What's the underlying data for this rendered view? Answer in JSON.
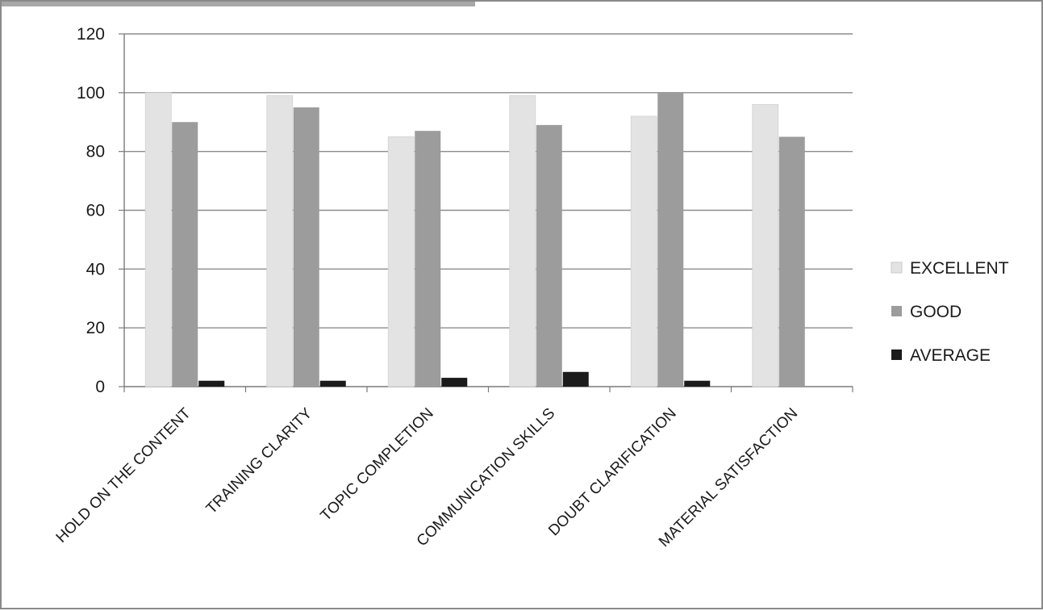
{
  "chart_data": {
    "type": "bar",
    "categories": [
      "HOLD ON THE CONTENT",
      "TRAINING CLARITY",
      "TOPIC COMPLETION",
      "COMMUNICATION SKILLS",
      "DOUBT CLARIFICATION",
      "MATERIAL SATISFACTION"
    ],
    "series": [
      {
        "name": "EXCELLENT",
        "values": [
          100,
          99,
          85,
          99,
          92,
          96
        ],
        "color": "#e3e3e3"
      },
      {
        "name": "GOOD",
        "values": [
          90,
          95,
          87,
          89,
          100,
          85
        ],
        "color": "#9c9c9c"
      },
      {
        "name": "AVERAGE",
        "values": [
          2,
          2,
          3,
          5,
          2,
          0
        ],
        "color": "#1b1b1b"
      }
    ],
    "title": "",
    "xlabel": "",
    "ylabel": "",
    "ylim": [
      0,
      120
    ],
    "yticks": [
      0,
      20,
      40,
      60,
      80,
      100,
      120
    ],
    "grid": true,
    "legend": "right"
  }
}
